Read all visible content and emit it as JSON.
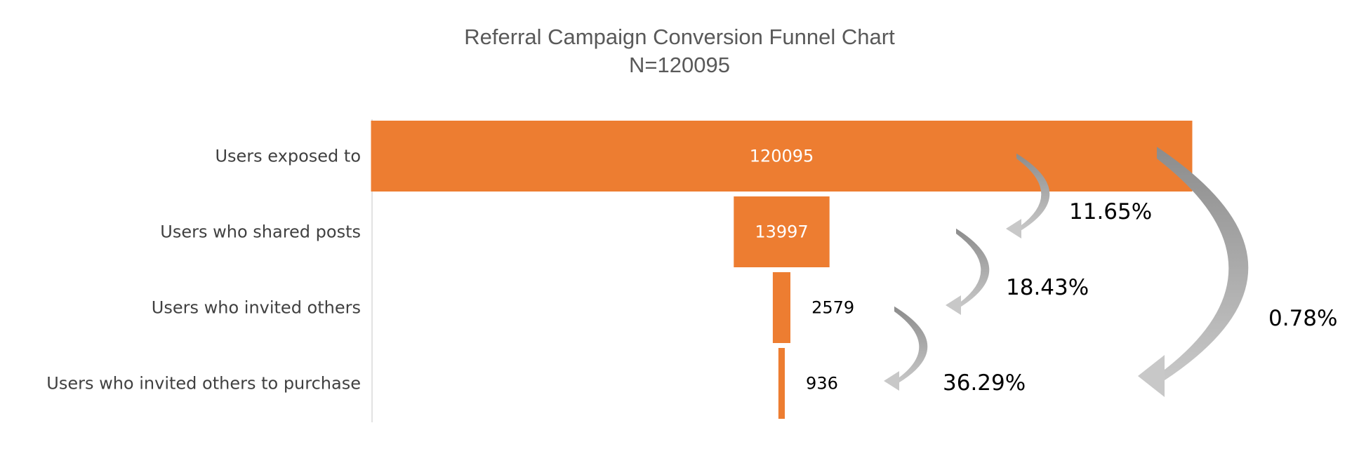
{
  "chart_data": {
    "type": "bar",
    "subtype": "funnel",
    "title": "Referral Campaign Conversion Funnel Chart",
    "subtitle": "N=120095",
    "categories": [
      "Users exposed to",
      "Users who shared posts",
      "Users who invited others",
      "Users who invited others to purchase"
    ],
    "values": [
      120095,
      13997,
      2579,
      936
    ],
    "value_labels": [
      "120095",
      "13997",
      "2579",
      "936"
    ],
    "conversions": [
      {
        "from": 0,
        "to": 1,
        "label": "11.65%"
      },
      {
        "from": 1,
        "to": 2,
        "label": "18.43%"
      },
      {
        "from": 2,
        "to": 3,
        "label": "36.29%"
      },
      {
        "from": 0,
        "to": 3,
        "label": "0.78%"
      }
    ],
    "xlim": [
      0,
      120095
    ],
    "bar_color": "#ED7D31",
    "arrow_color_dark": "#8C8C8C",
    "arrow_color_light": "#C8C8C8",
    "label_inside_color": "#FFFFFF",
    "label_outside_color": "#000000"
  }
}
